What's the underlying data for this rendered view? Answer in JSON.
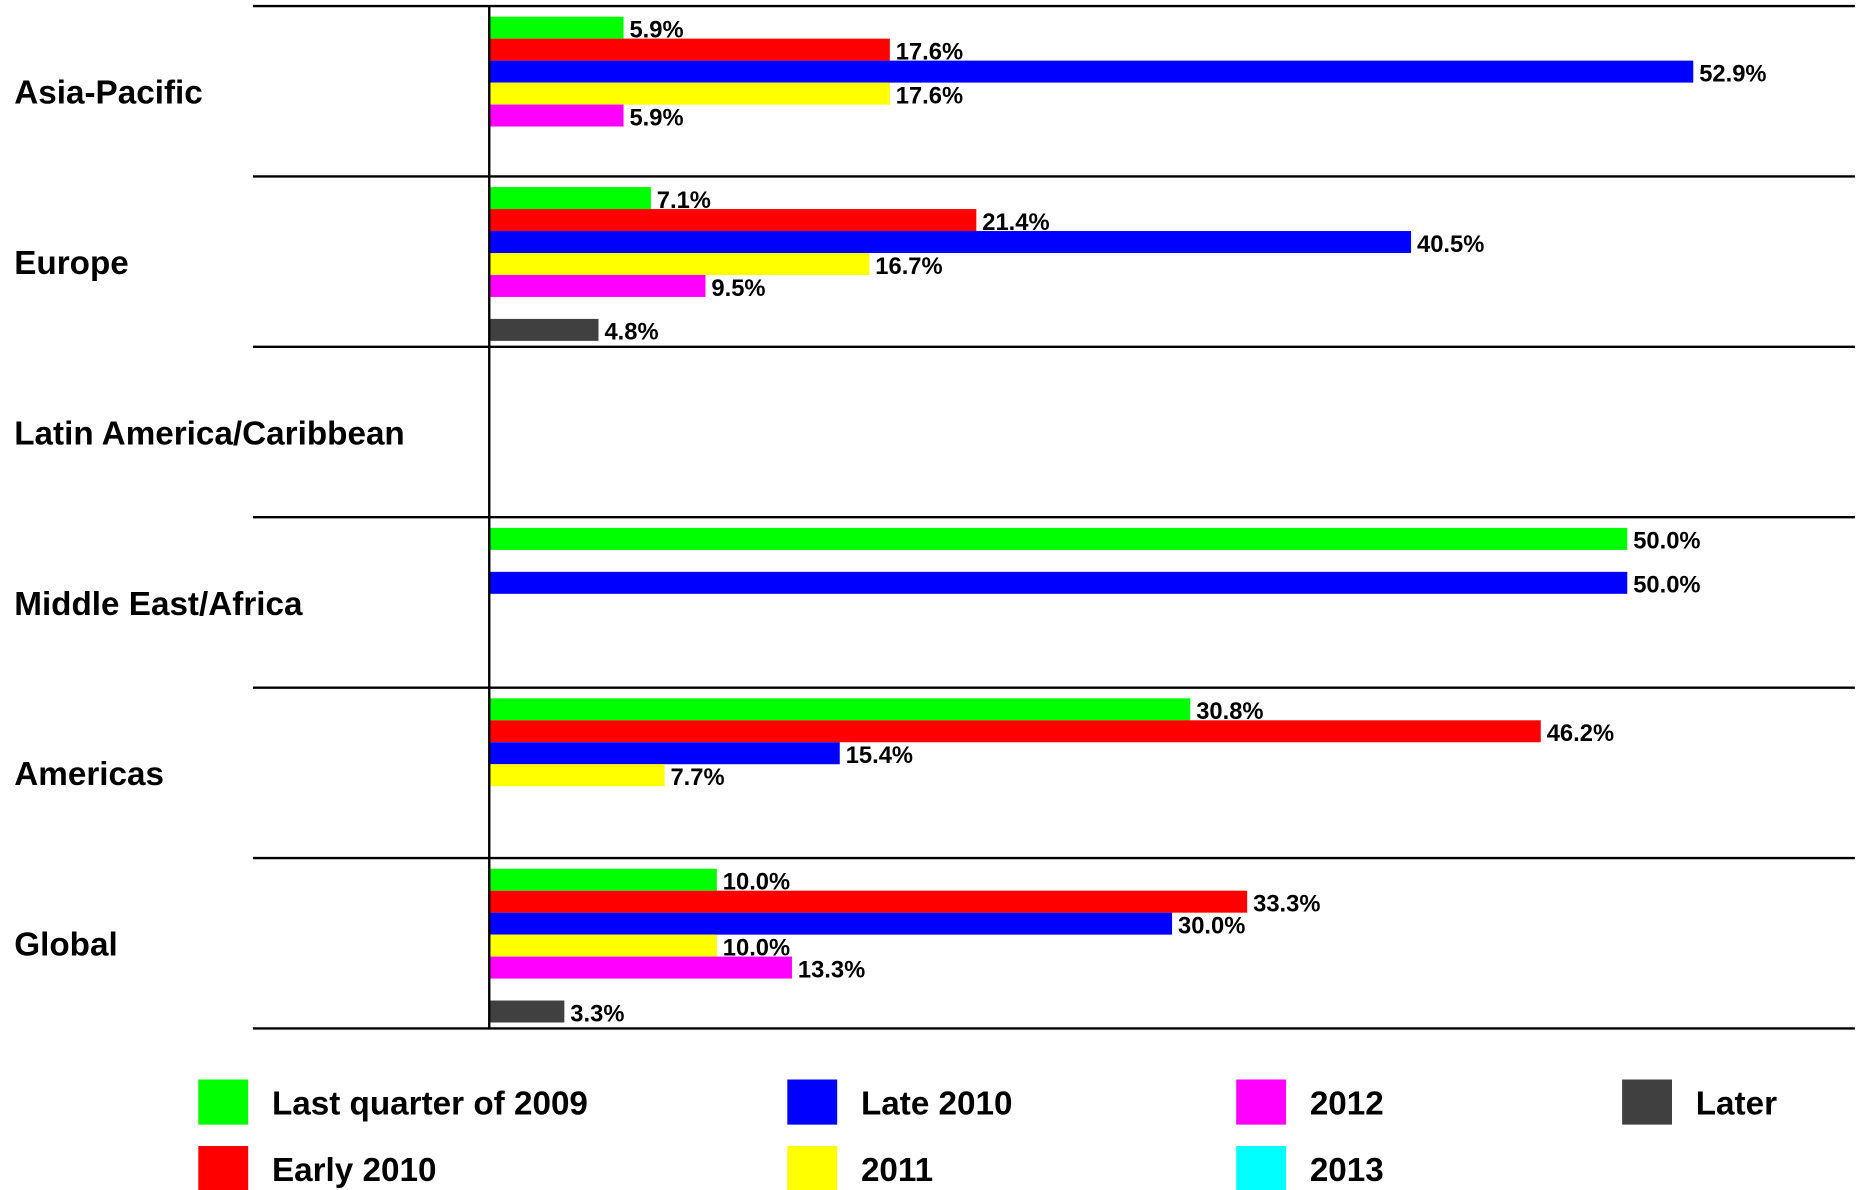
{
  "chart_data": {
    "type": "barh",
    "categories": [
      "Asia-Pacific",
      "Europe",
      "Latin America/Caribbean",
      "Middle East/Africa",
      "Americas",
      "Global"
    ],
    "xlim": [
      0,
      60
    ],
    "series": [
      {
        "name": "Last quarter of 2009",
        "color": "#00ff00",
        "values": [
          5.9,
          7.1,
          0,
          50.0,
          30.8,
          10.0
        ],
        "value_labels": [
          "5.9%",
          "7.1%",
          null,
          "50.0%",
          "30.8%",
          "10.0%"
        ]
      },
      {
        "name": "Early 2010",
        "color": "#ff0000",
        "values": [
          17.6,
          21.4,
          0,
          0,
          46.2,
          33.3
        ],
        "value_labels": [
          "17.6%",
          "21.4%",
          null,
          null,
          "46.2%",
          "33.3%"
        ]
      },
      {
        "name": "Late 2010",
        "color": "#0000ff",
        "values": [
          52.9,
          40.5,
          0,
          50.0,
          15.4,
          30.0
        ],
        "value_labels": [
          "52.9%",
          "40.5%",
          null,
          "50.0%",
          "15.4%",
          "30.0%"
        ]
      },
      {
        "name": "2011",
        "color": "#ffff00",
        "values": [
          17.6,
          16.7,
          0,
          0,
          7.7,
          10.0
        ],
        "value_labels": [
          "17.6%",
          "16.7%",
          null,
          null,
          "7.7%",
          "10.0%"
        ]
      },
      {
        "name": "2012",
        "color": "#ff00ff",
        "values": [
          5.9,
          9.5,
          0,
          0,
          0,
          13.3
        ],
        "value_labels": [
          "5.9%",
          "9.5%",
          null,
          null,
          null,
          "13.3%"
        ]
      },
      {
        "name": "2013",
        "color": "#00ffff",
        "values": [
          0,
          0,
          0,
          0,
          0,
          0
        ],
        "value_labels": [
          null,
          null,
          null,
          null,
          null,
          null
        ]
      },
      {
        "name": "Later",
        "color": "#404040",
        "values": [
          0,
          4.8,
          0,
          0,
          0,
          3.3
        ],
        "value_labels": [
          null,
          "4.8%",
          null,
          null,
          null,
          "3.3%"
        ]
      }
    ]
  }
}
